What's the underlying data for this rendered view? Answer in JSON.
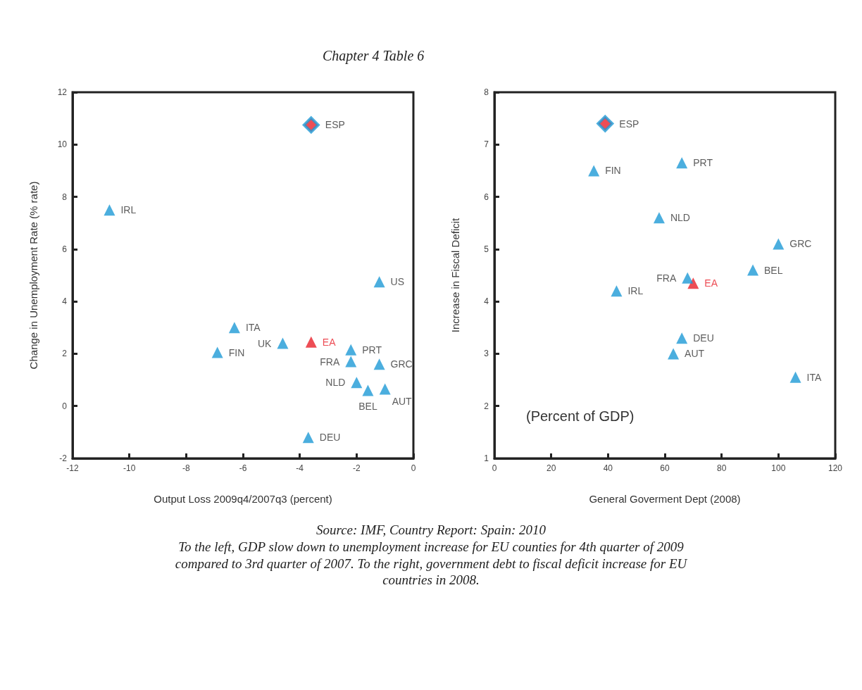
{
  "chart_data": [
    {
      "type": "scatter",
      "title": "Chapter 4 Table 6",
      "xlabel": "Output Loss 2009q4/2007q3 (percent)",
      "ylabel": "Change in Unemployment Rate (% rate)",
      "xlim": [
        -12,
        0
      ],
      "xticks": [
        -12,
        -10,
        -8,
        -6,
        -4,
        -2,
        0
      ],
      "ylim": [
        -2,
        12
      ],
      "yticks": [
        -2,
        0,
        2,
        4,
        6,
        8,
        10,
        12
      ],
      "grid": false,
      "marker": "triangle",
      "series": [
        {
          "color": "#1e9ad6",
          "x": [
            -10.7,
            -6.3,
            -6.9,
            -4.6,
            -2.2,
            -2.2,
            -1.2,
            -2.0,
            -1.6,
            -1.0,
            -1.2,
            -3.7
          ],
          "values": [
            7.5,
            3.0,
            2.05,
            2.4,
            2.15,
            1.7,
            1.6,
            0.9,
            0.6,
            0.65,
            4.75,
            -1.2
          ]
        },
        {
          "color": "#e8202a",
          "marker": "diamond",
          "x": [
            -3.6
          ],
          "values": [
            10.75
          ]
        },
        {
          "color": "#e8202a",
          "x": [
            -3.6
          ],
          "values": [
            2.45
          ]
        }
      ],
      "annotations": [
        {
          "text": "IRL",
          "x": -10.7,
          "y": 7.5
        },
        {
          "text": "ITA",
          "x": -6.3,
          "y": 3.0
        },
        {
          "text": "FIN",
          "x": -6.9,
          "y": 2.05
        },
        {
          "text": "UK",
          "x": -4.6,
          "y": 2.4
        },
        {
          "text": "PRT",
          "x": -2.2,
          "y": 2.15
        },
        {
          "text": "FRA",
          "x": -2.2,
          "y": 1.7
        },
        {
          "text": "GRC",
          "x": -1.2,
          "y": 1.6
        },
        {
          "text": "NLD",
          "x": -2.0,
          "y": 0.9
        },
        {
          "text": "BEL",
          "x": -1.6,
          "y": 0.6
        },
        {
          "text": "AUT",
          "x": -1.0,
          "y": 0.65
        },
        {
          "text": "US",
          "x": -1.2,
          "y": 4.75
        },
        {
          "text": "DEU",
          "x": -3.7,
          "y": -1.2
        },
        {
          "text": "ESP",
          "x": -3.6,
          "y": 10.75
        },
        {
          "text": "EA",
          "x": -3.6,
          "y": 2.45
        }
      ]
    },
    {
      "type": "scatter",
      "subtitle": "(Percent of GDP)",
      "xlabel": "General Goverment Dept (2008)",
      "ylabel": "Increase in Fiscal Deficit",
      "xlim": [
        0,
        120
      ],
      "xticks": [
        0,
        20,
        40,
        60,
        80,
        100,
        120
      ],
      "ylim": [
        1,
        8
      ],
      "yticks": [
        1,
        2,
        3,
        4,
        5,
        6,
        7,
        8
      ],
      "grid": false,
      "marker": "triangle",
      "series": [
        {
          "color": "#1e9ad6",
          "x": [
            35,
            66,
            58,
            100,
            91,
            68,
            43,
            66,
            63,
            106
          ],
          "values": [
            6.5,
            6.65,
            5.6,
            5.1,
            4.6,
            4.45,
            4.2,
            3.3,
            3.0,
            2.55
          ]
        },
        {
          "color": "#e8202a",
          "marker": "diamond",
          "x": [
            39
          ],
          "values": [
            7.4
          ]
        },
        {
          "color": "#e8202a",
          "x": [
            70
          ],
          "values": [
            4.35
          ]
        }
      ],
      "annotations": [
        {
          "text": "FIN",
          "x": 35,
          "y": 6.5
        },
        {
          "text": "PRT",
          "x": 66,
          "y": 6.65
        },
        {
          "text": "NLD",
          "x": 58,
          "y": 5.6
        },
        {
          "text": "GRC",
          "x": 100,
          "y": 5.1
        },
        {
          "text": "BEL",
          "x": 91,
          "y": 4.6
        },
        {
          "text": "FRA",
          "x": 68,
          "y": 4.45
        },
        {
          "text": "IRL",
          "x": 43,
          "y": 4.2
        },
        {
          "text": "DEU",
          "x": 66,
          "y": 3.3
        },
        {
          "text": "AUT",
          "x": 63,
          "y": 3.0
        },
        {
          "text": "ITA",
          "x": 106,
          "y": 2.55
        },
        {
          "text": "ESP",
          "x": 39,
          "y": 7.4
        },
        {
          "text": "EA",
          "x": 70,
          "y": 4.35
        },
        "Source: IMF, Country Report: Spain: 2010",
        "To the left, GDP slow down to unemployment increase for EU counties for 4th quarter of 2009 compared to 3rd quarter of 2007. To the right, government debt to fiscal deficit increase for EU countries in 2008."
      ]
    }
  ]
}
